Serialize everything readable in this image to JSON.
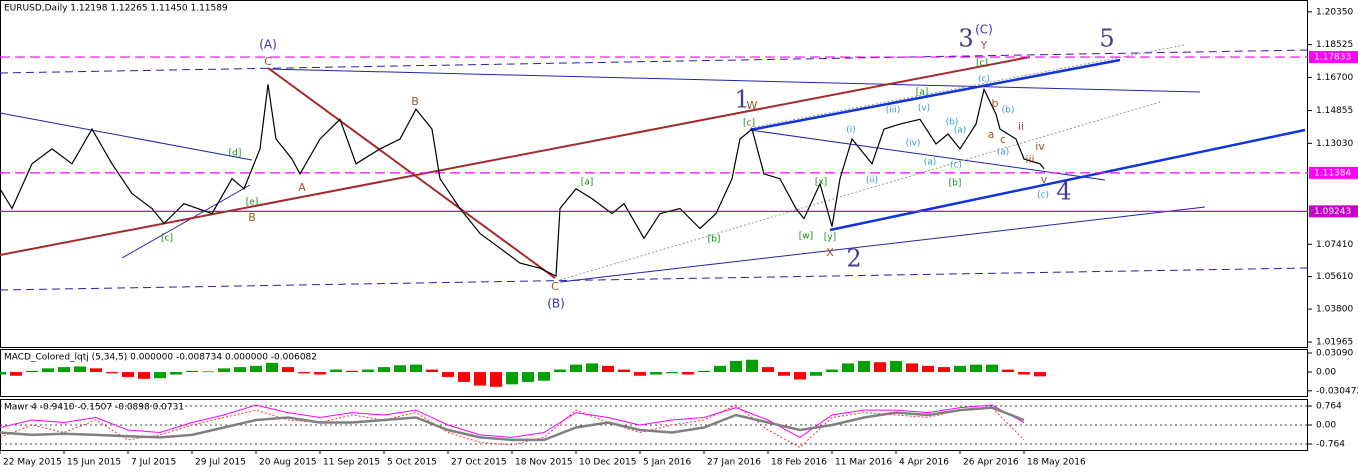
{
  "chart_data": [
    {
      "type": "line",
      "title": "EURUSD,Daily  1.12198 1.12265 1.11450 1.11589",
      "color": "#000000",
      "x": [
        0,
        3,
        8,
        13,
        18,
        23,
        28,
        33,
        38,
        41,
        46,
        53,
        58,
        61,
        65,
        67,
        69,
        73,
        75,
        80,
        85,
        89,
        95,
        100,
        104,
        108,
        110,
        115,
        120,
        125,
        130,
        135,
        139,
        140,
        144,
        148,
        153,
        156,
        161,
        165,
        170,
        175,
        179,
        183,
        185,
        188,
        191,
        195,
        199,
        201,
        205,
        208,
        210,
        213,
        218,
        221,
        225,
        230,
        234,
        237,
        240,
        244,
        246,
        249,
        250,
        254,
        256,
        260,
        261
      ],
      "values": [
        1.105,
        1.094,
        1.1189,
        1.1272,
        1.1189,
        1.1382,
        1.1189,
        1.1023,
        1.094,
        1.0857,
        1.0967,
        1.0912,
        1.1106,
        1.105,
        1.1272,
        1.1631,
        1.1327,
        1.1216,
        1.1133,
        1.1327,
        1.1437,
        1.1189,
        1.1272,
        1.1327,
        1.1493,
        1.1382,
        1.1106,
        1.094,
        1.0801,
        1.0719,
        1.0636,
        1.0608,
        1.0564,
        1.094,
        1.105,
        1.0995,
        1.0912,
        1.0967,
        1.0774,
        1.0912,
        1.094,
        1.0829,
        1.0912,
        1.1106,
        1.1327,
        1.1382,
        1.1133,
        1.1106,
        1.094,
        1.0884,
        1.1078,
        1.084,
        1.1106,
        1.1327,
        1.1189,
        1.1382,
        1.141,
        1.1437,
        1.1299,
        1.1355,
        1.1272,
        1.141,
        1.1603,
        1.1465,
        1.1382,
        1.1327,
        1.1216,
        1.1189,
        1.1161
      ],
      "xlim": [
        0,
        327
      ],
      "ylim": [
        1.0169,
        1.2101
      ],
      "xticks": [
        {
          "value": 0,
          "label": "22 May 2015"
        },
        {
          "value": 16,
          "label": "15 Jun 2015"
        },
        {
          "value": 32,
          "label": "7 Jul 2015"
        },
        {
          "value": 48,
          "label": "29 Jul 2015"
        },
        {
          "value": 64,
          "label": "20 Aug 2015"
        },
        {
          "value": 80,
          "label": "11 Sep 2015"
        },
        {
          "value": 96,
          "label": "5 Oct 2015"
        },
        {
          "value": 112,
          "label": "27 Oct 2015"
        },
        {
          "value": 128,
          "label": "18 Nov 2015"
        },
        {
          "value": 144,
          "label": "10 Dec 2015"
        },
        {
          "value": 160,
          "label": "5 Jan 2016"
        },
        {
          "value": 176,
          "label": "27 Jan 2016"
        },
        {
          "value": 192,
          "label": "18 Feb 2016"
        },
        {
          "value": 208,
          "label": "11 Mar 2016"
        },
        {
          "value": 224,
          "label": "4 Apr 2016"
        },
        {
          "value": 240,
          "label": "26 Apr 2016"
        },
        {
          "value": 256,
          "label": "18 May 2016"
        }
      ],
      "yticks": [
        {
          "value": 1.2035,
          "label": "1.20350"
        },
        1.18525,
        {
          "value": 1.167,
          "label": "1.16700"
        },
        1.14855,
        {
          "value": 1.1303,
          "label": "1.13030"
        },
        {
          "value": 1.0741,
          "label": "1.07410"
        },
        {
          "value": 1.0561,
          "label": "1.05610"
        },
        {
          "value": 1.038,
          "label": "1.03800"
        },
        1.01965
      ],
      "hlines": [
        {
          "value": 1.17833,
          "color": "#ff00ff",
          "dash": true
        },
        {
          "value": 1.11384,
          "color": "#ff00ff",
          "dash": true
        },
        {
          "value": 1.09243,
          "color": "#cc00cc",
          "dash": false
        }
      ],
      "annotations": [
        "(A)",
        "C",
        "B",
        "A",
        "B",
        "[d]",
        "[e]",
        "[c]",
        "C",
        "(B)",
        "1",
        "W",
        "[c]",
        "[a]",
        "[b]",
        "[w]",
        "[x]",
        "[y]",
        "X",
        "2",
        "(i)",
        "(ii)",
        "(iii)",
        "(iv)",
        "(v)",
        "[a]",
        "(a)",
        "(b)",
        "(c)",
        "[b]",
        "(a)",
        "3",
        "(C)",
        "Y",
        "[c]",
        "(c)",
        "b",
        "a",
        "c",
        "(b)",
        "(a)",
        "ii",
        "iii",
        "iv",
        "v",
        "(c)",
        "4",
        "5"
      ]
    },
    {
      "type": "bar",
      "title": "MACD_Colored_lqtj (5,34,5) 0.000000 -0.008734 0.000000 -0.006082",
      "up_color": "#00a000",
      "down_color": "#ff0000",
      "x": [
        0,
        4,
        8,
        12,
        16,
        20,
        24,
        28,
        32,
        36,
        40,
        44,
        48,
        52,
        56,
        60,
        64,
        68,
        72,
        76,
        80,
        84,
        88,
        92,
        96,
        100,
        104,
        108,
        112,
        116,
        120,
        124,
        128,
        132,
        136,
        140,
        144,
        148,
        152,
        156,
        160,
        164,
        168,
        172,
        176,
        180,
        184,
        188,
        192,
        196,
        200,
        204,
        208,
        212,
        216,
        220,
        224,
        228,
        232,
        236,
        240,
        244,
        248,
        252,
        256,
        260
      ],
      "values": [
        -0.004,
        -0.006,
        0.002,
        0.006,
        0.008,
        0.009,
        0.006,
        -0.002,
        -0.008,
        -0.011,
        -0.01,
        -0.004,
        0.002,
        0.001,
        0.006,
        0.008,
        0.01,
        0.015,
        0.008,
        -0.002,
        -0.004,
        0.004,
        0.002,
        0.004,
        0.008,
        0.011,
        0.012,
        0.004,
        -0.008,
        -0.016,
        -0.022,
        -0.024,
        -0.02,
        -0.016,
        -0.014,
        0.004,
        0.012,
        0.014,
        0.01,
        0.004,
        -0.006,
        -0.004,
        -0.002,
        -0.004,
        0.002,
        0.01,
        0.018,
        0.02,
        0.008,
        -0.006,
        -0.012,
        -0.006,
        0.004,
        0.014,
        0.018,
        0.016,
        0.018,
        0.014,
        0.01,
        0.008,
        0.01,
        0.012,
        0.012,
        0.004,
        -0.004,
        -0.007
      ],
      "ylim": [
        -0.0405,
        0.0374
      ],
      "yticks": [
        {
          "value": 0.0309,
          "label": "0.03090"
        },
        {
          "value": 0,
          "label": "0.00"
        },
        -0.030472
      ]
    },
    {
      "type": "line",
      "title": "Mawr 4 -0.9410 -0.1507 -0.0898 0.0731",
      "grid": true,
      "x": [
        0,
        8,
        16,
        24,
        32,
        40,
        48,
        56,
        64,
        72,
        80,
        88,
        96,
        104,
        112,
        120,
        128,
        136,
        144,
        152,
        160,
        168,
        176,
        184,
        192,
        200,
        208,
        216,
        224,
        232,
        240,
        248,
        256
      ],
      "series": [
        {
          "color": "#ff3333",
          "dash": true,
          "values": [
            -0.5,
            0.0,
            -0.3,
            0.2,
            -0.6,
            -0.4,
            0.0,
            0.3,
            0.6,
            0.2,
            0.1,
            0.4,
            0.2,
            0.5,
            -0.3,
            -0.7,
            -0.8,
            -0.5,
            0.6,
            0.1,
            -0.3,
            0.0,
            0.2,
            0.8,
            -0.2,
            -0.9,
            0.3,
            0.5,
            0.4,
            0.3,
            0.6,
            0.7,
            -0.6
          ]
        },
        {
          "color": "#ff00ff",
          "dash": false,
          "values": [
            -0.1,
            0.2,
            0.1,
            0.3,
            -0.2,
            -0.3,
            0.1,
            0.4,
            0.8,
            0.5,
            0.3,
            0.5,
            0.4,
            0.6,
            0.0,
            -0.4,
            -0.5,
            -0.3,
            0.5,
            0.3,
            0.0,
            0.2,
            0.3,
            0.7,
            0.2,
            -0.5,
            0.4,
            0.6,
            0.6,
            0.5,
            0.7,
            0.8,
            0.1
          ]
        },
        {
          "color": "#808080",
          "dash": false,
          "values": [
            -0.3,
            -0.4,
            -0.35,
            -0.4,
            -0.45,
            -0.5,
            -0.4,
            -0.1,
            0.2,
            0.3,
            0.1,
            0.1,
            0.2,
            0.3,
            -0.2,
            -0.5,
            -0.6,
            -0.6,
            -0.1,
            0.1,
            -0.2,
            -0.3,
            -0.1,
            0.4,
            0.1,
            -0.2,
            0.0,
            0.3,
            0.5,
            0.4,
            0.6,
            0.7,
            0.2
          ]
        }
      ],
      "ylim": [
        -1.005,
        1.045
      ],
      "yticks": [
        {
          "value": 0.764,
          "label": "0.764"
        },
        {
          "value": 0,
          "label": "0.00"
        },
        -0.764
      ]
    }
  ]
}
